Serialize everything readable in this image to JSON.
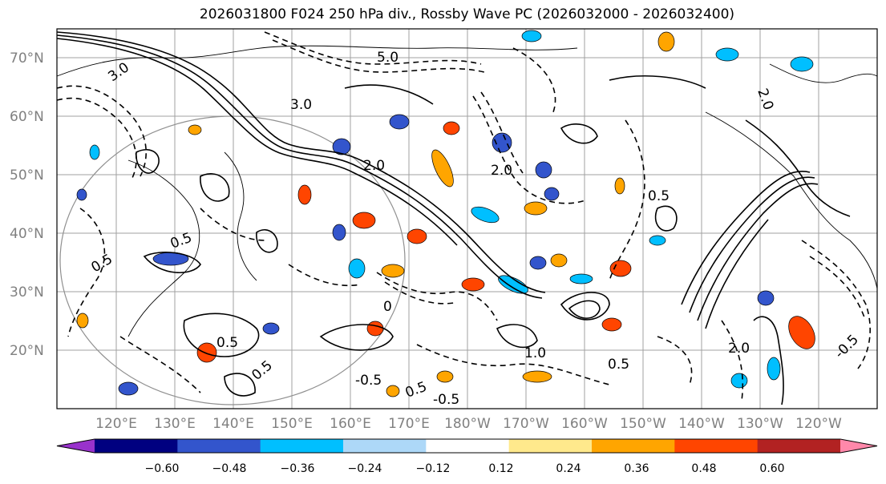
{
  "title": "2026031800 F024 250 hPa div., Rossby Wave PC (2026032000 - 2026032400)",
  "map": {
    "lat_labels": [
      "70°N",
      "60°N",
      "50°N",
      "40°N",
      "30°N",
      "20°N"
    ],
    "lon_labels": [
      "120°E",
      "130°E",
      "140°E",
      "150°E",
      "160°E",
      "170°E",
      "180°W",
      "170°W",
      "160°W",
      "150°W",
      "140°W",
      "130°W",
      "120°W"
    ],
    "contour_labels": [
      "3.0",
      "5.0",
      "3.0",
      "2.0",
      "2.0",
      "2.0",
      "0.5",
      "0.5",
      "0.5",
      "0.5",
      "1.0",
      "2.0",
      "-0.5",
      "-0.5",
      "0.5",
      "-0.5",
      "0.5",
      "0.5",
      "0"
    ],
    "colors": {
      "land_line": "#000000",
      "grid": "#a0a0a0",
      "solid_contour": "#000000",
      "dashed_contour": "#000000"
    }
  },
  "colorbar": {
    "tick_labels": [
      "−0.60",
      "−0.48",
      "−0.36",
      "−0.24",
      "−0.12",
      "0.12",
      "0.24",
      "0.36",
      "0.48",
      "0.60"
    ],
    "colors": [
      "#9932CC",
      "#000080",
      "#3355CC",
      "#00BFFF",
      "#ADD8F8",
      "#FFFFFF",
      "#FFE98C",
      "#FFA500",
      "#FF4500",
      "#B22222",
      "#FF88AA"
    ]
  }
}
